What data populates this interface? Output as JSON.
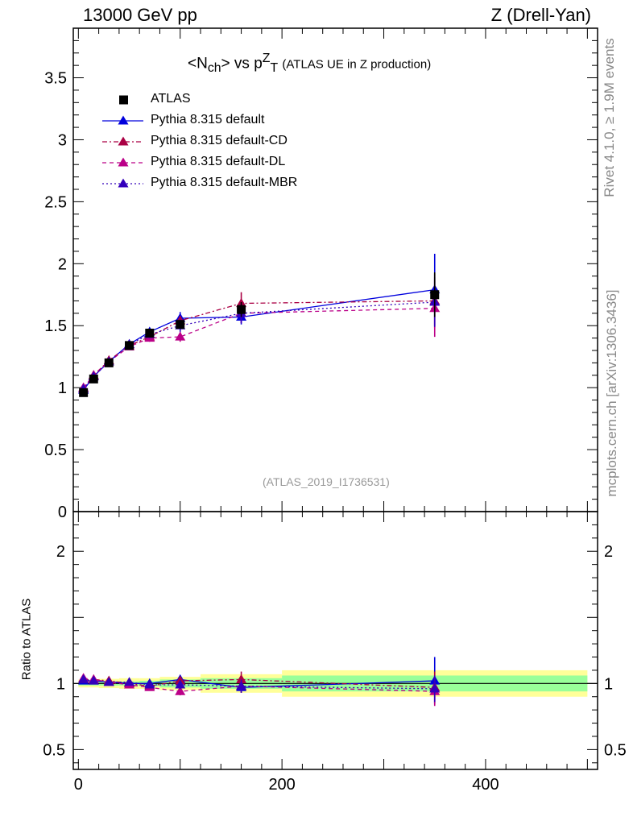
{
  "header": {
    "left_label": "13000 GeV pp",
    "right_label": "Z (Drell-Yan)"
  },
  "side_labels": {
    "rivet": "Rivet 4.1.0, ≥ 1.9M events",
    "mcplots": "mcplots.cern.ch [arXiv:1306.3436]"
  },
  "colors": {
    "atlas": "#000000",
    "default": "#0000dd",
    "cd": "#aa0044",
    "dl": "#bb0088",
    "mbr": "#3300bb",
    "band_stat": "#99ff99",
    "band_total": "#ffff99"
  },
  "chart_data": [
    {
      "type": "line",
      "panel": "main",
      "title": {
        "base": "<N",
        "sub1": "ch",
        "mid": "> vs p",
        "sup": "Z",
        "sub2": "T",
        "rest": "(ATLAS UE in Z production)"
      },
      "watermark": "(ATLAS_2019_I1736531)",
      "xlim": [
        -5,
        510
      ],
      "ylim": [
        0,
        3.9
      ],
      "yticks": [
        0,
        0.5,
        1,
        1.5,
        2,
        2.5,
        3,
        3.5
      ],
      "ytick_labels": [
        "0",
        "0.5",
        "1",
        "1.5",
        "2",
        "2.5",
        "3",
        "3.5"
      ],
      "legend": [
        "ATLAS",
        "Pythia 8.315 default",
        "Pythia 8.315 default-CD",
        "Pythia 8.315 default-DL",
        "Pythia 8.315 default-MBR"
      ],
      "x": [
        5,
        15,
        30,
        50,
        70,
        100,
        160,
        350
      ],
      "data": {
        "name": "ATLAS",
        "values": [
          0.96,
          1.07,
          1.2,
          1.34,
          1.44,
          1.51,
          1.63,
          1.75
        ],
        "errors": [
          0.01,
          0.01,
          0.01,
          0.015,
          0.02,
          0.03,
          0.06,
          0.18
        ]
      },
      "series": [
        {
          "name": "Pythia 8.315 default",
          "values": [
            0.98,
            1.09,
            1.21,
            1.35,
            1.45,
            1.56,
            1.57,
            1.79
          ],
          "errors": [
            0.01,
            0.01,
            0.015,
            0.02,
            0.03,
            0.05,
            0.06,
            0.29
          ]
        },
        {
          "name": "Pythia 8.315 default-CD",
          "values": [
            0.99,
            1.1,
            1.22,
            1.34,
            1.41,
            1.54,
            1.68,
            1.7
          ],
          "errors": [
            0.01,
            0.01,
            0.015,
            0.02,
            0.03,
            0.04,
            0.09,
            0.22
          ]
        },
        {
          "name": "Pythia 8.315 default-DL",
          "values": [
            1.0,
            1.1,
            1.21,
            1.33,
            1.4,
            1.41,
            1.6,
            1.64
          ],
          "errors": [
            0.01,
            0.01,
            0.015,
            0.02,
            0.03,
            0.04,
            0.08,
            0.23
          ]
        },
        {
          "name": "Pythia 8.315 default-MBR",
          "values": [
            0.99,
            1.09,
            1.21,
            1.35,
            1.43,
            1.5,
            1.6,
            1.69
          ],
          "errors": [
            0.01,
            0.01,
            0.015,
            0.02,
            0.03,
            0.05,
            0.08,
            0.2
          ]
        }
      ]
    },
    {
      "type": "line",
      "panel": "ratio",
      "ylabel": "Ratio to ATLAS",
      "xlim": [
        -5,
        510
      ],
      "ylim": [
        0.35,
        2.3
      ],
      "yticks": [
        0.5,
        1,
        2
      ],
      "ytick_labels": [
        "0.5",
        "1",
        "2"
      ],
      "xticks": [
        0,
        200,
        400
      ],
      "xtick_labels": [
        "0",
        "200",
        "400"
      ],
      "bins": [
        [
          0,
          10,
          0.015,
          0.03
        ],
        [
          10,
          20,
          0.015,
          0.03
        ],
        [
          20,
          40,
          0.015,
          0.035
        ],
        [
          40,
          60,
          0.015,
          0.04
        ],
        [
          60,
          80,
          0.02,
          0.04
        ],
        [
          80,
          120,
          0.03,
          0.05
        ],
        [
          120,
          200,
          0.04,
          0.07
        ],
        [
          200,
          500,
          0.06,
          0.1
        ]
      ],
      "series": [
        {
          "name": "Pythia 8.315 default",
          "values": [
            1.02,
            1.02,
            1.01,
            1.0,
            1.0,
            1.03,
            0.97,
            1.02
          ],
          "errors": [
            0.01,
            0.01,
            0.01,
            0.015,
            0.02,
            0.03,
            0.04,
            0.18
          ]
        },
        {
          "name": "Pythia 8.315 default-CD",
          "values": [
            1.03,
            1.03,
            1.02,
            1.0,
            0.98,
            1.02,
            1.03,
            0.97
          ],
          "errors": [
            0.01,
            0.01,
            0.01,
            0.015,
            0.02,
            0.03,
            0.06,
            0.12
          ]
        },
        {
          "name": "Pythia 8.315 default-DL",
          "values": [
            1.04,
            1.03,
            1.01,
            0.99,
            0.97,
            0.94,
            0.98,
            0.94
          ],
          "errors": [
            0.01,
            0.01,
            0.01,
            0.015,
            0.02,
            0.03,
            0.05,
            0.11
          ]
        },
        {
          "name": "Pythia 8.315 default-MBR",
          "values": [
            1.03,
            1.02,
            1.01,
            1.01,
            0.99,
            0.99,
            0.98,
            0.96
          ],
          "errors": [
            0.01,
            0.01,
            0.01,
            0.015,
            0.02,
            0.03,
            0.05,
            0.1
          ]
        }
      ]
    }
  ]
}
